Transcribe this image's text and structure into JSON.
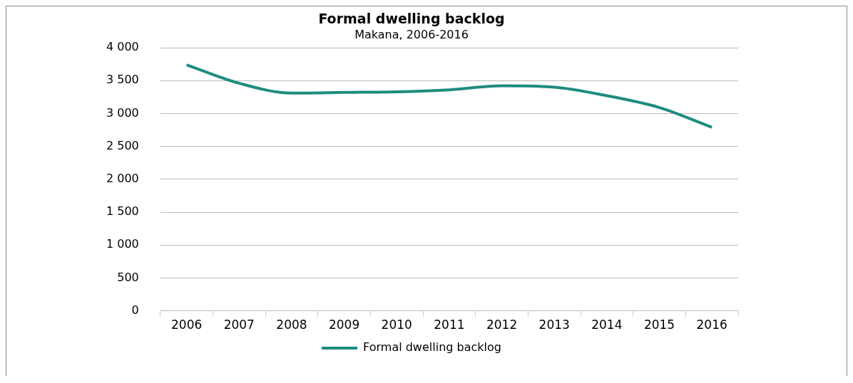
{
  "chart_data": {
    "type": "line",
    "title": "Formal dwelling backlog",
    "subtitle": "Makana, 2006-2016",
    "categories": [
      "2006",
      "2007",
      "2008",
      "2009",
      "2010",
      "2011",
      "2012",
      "2013",
      "2014",
      "2015",
      "2016"
    ],
    "series": [
      {
        "name": "Formal dwelling backlog",
        "color": "#1e8c7e",
        "values": [
          3740,
          3460,
          3310,
          3320,
          3330,
          3360,
          3420,
          3400,
          3270,
          3090,
          2790
        ]
      }
    ],
    "ylim": [
      0,
      4000
    ],
    "yticks": [
      {
        "value": 0,
        "label": "0"
      },
      {
        "value": 500,
        "label": "500"
      },
      {
        "value": 1000,
        "label": "1 000"
      },
      {
        "value": 1500,
        "label": "1 500"
      },
      {
        "value": 2000,
        "label": "2 000"
      },
      {
        "value": 2500,
        "label": "2 500"
      },
      {
        "value": 3000,
        "label": "3 000"
      },
      {
        "value": 3500,
        "label": "3 500"
      },
      {
        "value": 4000,
        "label": "4 000"
      }
    ],
    "grid": "y",
    "legend": "bottom",
    "marker": "none",
    "line_style": "solid"
  }
}
